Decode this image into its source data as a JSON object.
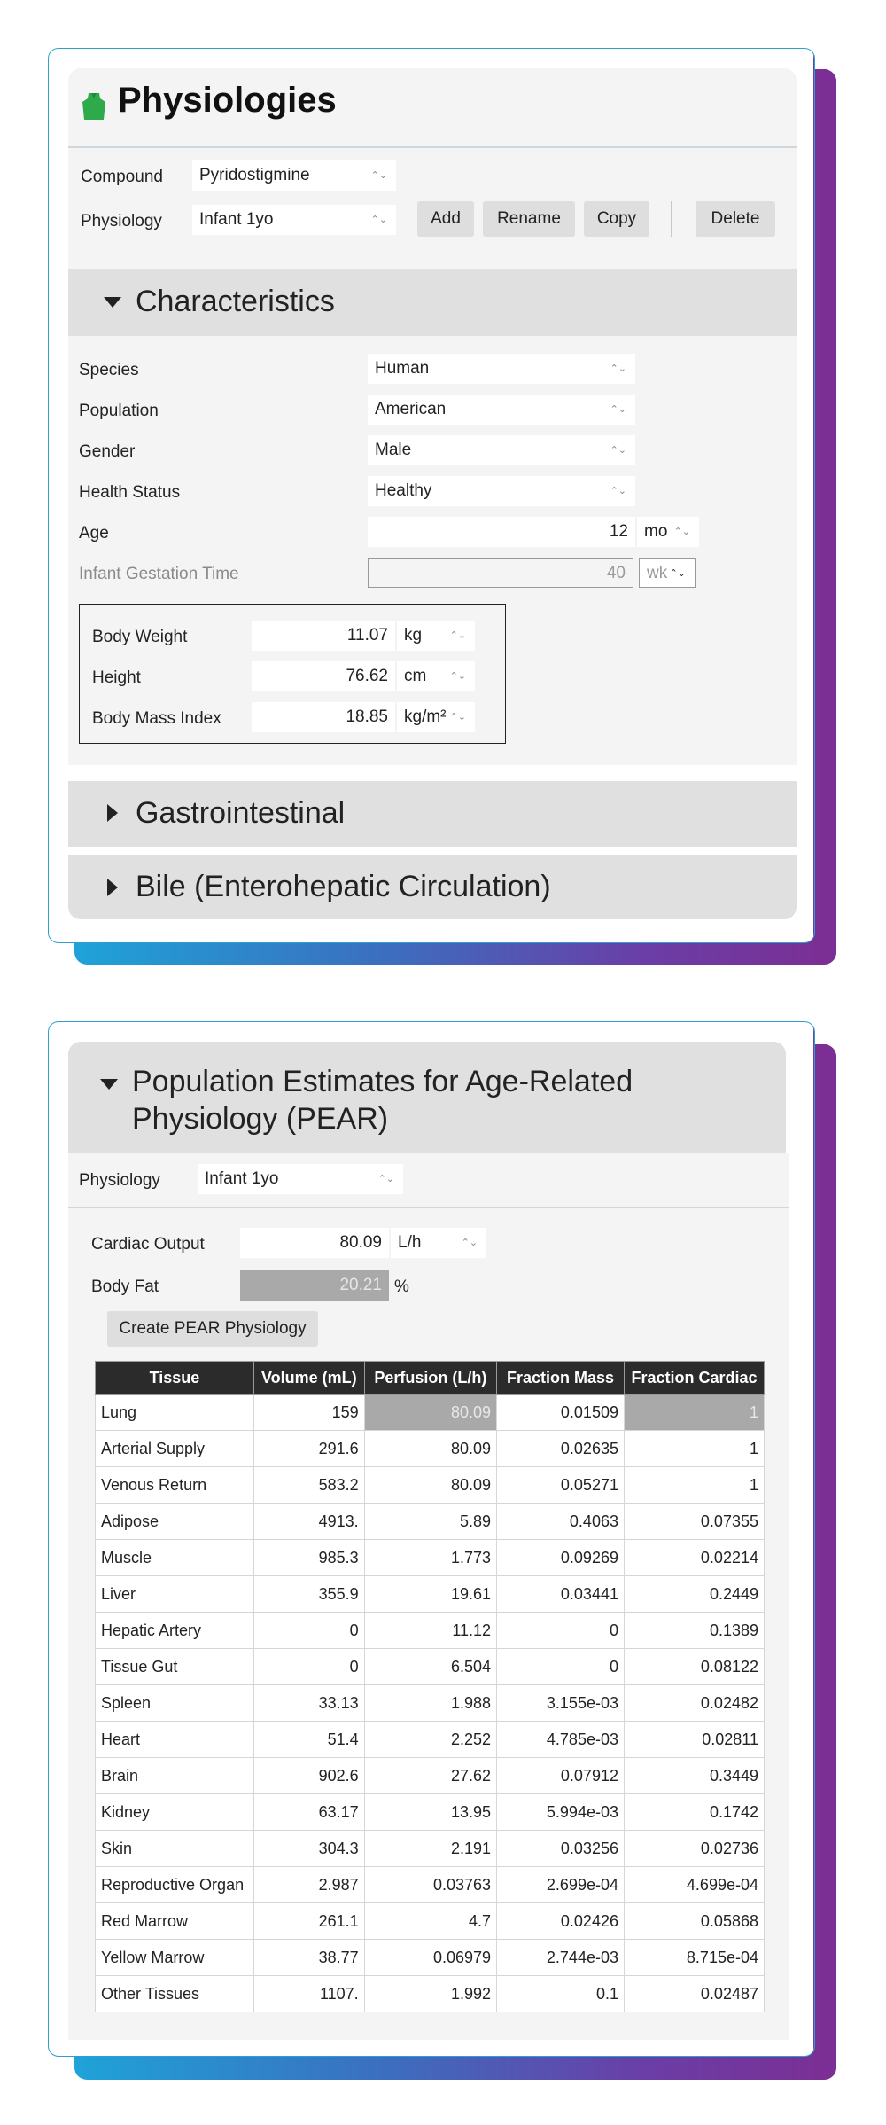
{
  "physiologies": {
    "title": "Physiologies",
    "compound_label": "Compound",
    "compound_value": "Pyridostigmine",
    "physiology_label": "Physiology",
    "physiology_value": "Infant 1yo",
    "buttons": {
      "add": "Add",
      "rename": "Rename",
      "copy": "Copy",
      "delete": "Delete"
    }
  },
  "characteristics": {
    "title": "Characteristics",
    "species_label": "Species",
    "species_value": "Human",
    "population_label": "Population",
    "population_value": "American",
    "gender_label": "Gender",
    "gender_value": "Male",
    "health_label": "Health Status",
    "health_value": "Healthy",
    "age_label": "Age",
    "age_value": "12",
    "age_unit": "mo",
    "gestation_label": "Infant Gestation Time",
    "gestation_value": "40",
    "gestation_unit": "wk",
    "body_weight_label": "Body Weight",
    "body_weight_value": "11.07",
    "body_weight_unit": "kg",
    "height_label": "Height",
    "height_value": "76.62",
    "height_unit": "cm",
    "bmi_label": "Body Mass Index",
    "bmi_value": "18.85",
    "bmi_unit": "kg/m²"
  },
  "collapsed_sections": {
    "gastro": "Gastrointestinal",
    "bile": "Bile (Enterohepatic Circulation)"
  },
  "pear": {
    "title_line1": "Population Estimates for Age-Related",
    "title_line2": "Physiology (PEAR)",
    "physiology_label": "Physiology",
    "physiology_value": "Infant 1yo",
    "cardiac_label": "Cardiac Output",
    "cardiac_value": "80.09",
    "cardiac_unit": "L/h",
    "bodyfat_label": "Body Fat",
    "bodyfat_value": "20.21",
    "bodyfat_unit": "%",
    "create_button": "Create PEAR Physiology",
    "columns": [
      "Tissue",
      "Volume (mL)",
      "Perfusion (L/h)",
      "Fraction Mass",
      "Fraction Cardiac"
    ],
    "rows": [
      [
        "Lung",
        "159",
        "80.09",
        "0.01509",
        "1"
      ],
      [
        "Arterial Supply",
        "291.6",
        "80.09",
        "0.02635",
        "1"
      ],
      [
        "Venous Return",
        "583.2",
        "80.09",
        "0.05271",
        "1"
      ],
      [
        "Adipose",
        "4913.",
        "5.89",
        "0.4063",
        "0.07355"
      ],
      [
        "Muscle",
        "985.3",
        "1.773",
        "0.09269",
        "0.02214"
      ],
      [
        "Liver",
        "355.9",
        "19.61",
        "0.03441",
        "0.2449"
      ],
      [
        "Hepatic Artery",
        "0",
        "11.12",
        "0",
        "0.1389"
      ],
      [
        "Tissue Gut",
        "0",
        "6.504",
        "0",
        "0.08122"
      ],
      [
        "Spleen",
        "33.13",
        "1.988",
        "3.155e-03",
        "0.02482"
      ],
      [
        "Heart",
        "51.4",
        "2.252",
        "4.785e-03",
        "0.02811"
      ],
      [
        "Brain",
        "902.6",
        "27.62",
        "0.07912",
        "0.3449"
      ],
      [
        "Kidney",
        "63.17",
        "13.95",
        "5.994e-03",
        "0.1742"
      ],
      [
        "Skin",
        "304.3",
        "2.191",
        "0.03256",
        "0.02736"
      ],
      [
        "Reproductive Organ",
        "2.987",
        "0.03763",
        "2.699e-04",
        "4.699e-04"
      ],
      [
        "Red Marrow",
        "261.1",
        "4.7",
        "0.02426",
        "0.05868"
      ],
      [
        "Yellow Marrow",
        "38.77",
        "0.06979",
        "2.744e-03",
        "8.715e-04"
      ],
      [
        "Other Tissues",
        "1107.",
        "1.992",
        "0.1",
        "0.02487"
      ]
    ]
  },
  "icons": {
    "physiology": "person-torso-icon"
  },
  "colors": {
    "accent_green": "#2eaa4a",
    "gradient_start": "#1ea3d8",
    "gradient_end": "#7b2f94"
  }
}
